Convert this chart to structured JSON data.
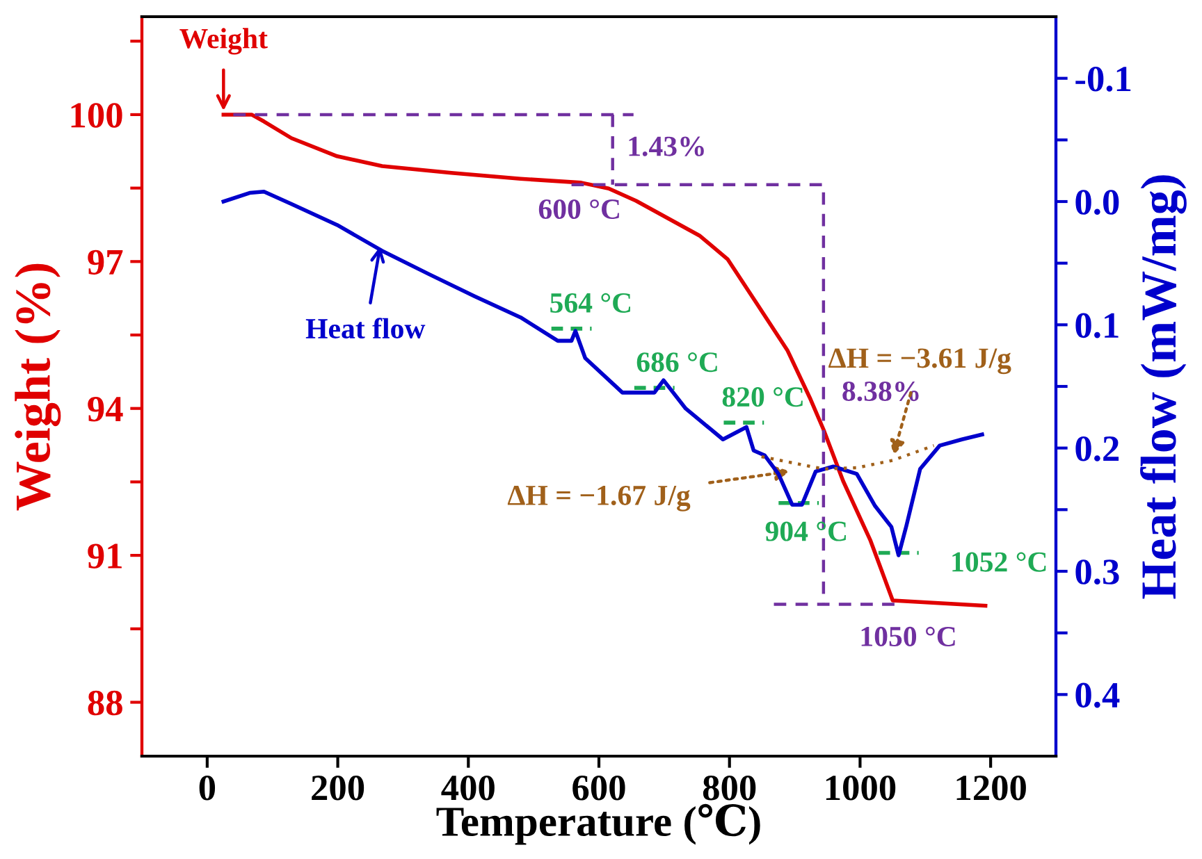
{
  "chart_data": {
    "type": "line",
    "xlabel": "Temperature (℃)",
    "ylabel": "Weight (%)",
    "y2label": "Heat flow (mW/mg)",
    "xlim": [
      -100,
      1300
    ],
    "xticks": [
      0,
      200,
      400,
      600,
      800,
      1000,
      1200
    ],
    "ylim": [
      86.9,
      102
    ],
    "yticks": [
      {
        "value": 101.5,
        "label": null
      },
      100,
      {
        "value": 98.5,
        "label": null
      },
      97,
      {
        "value": 95.5,
        "label": null
      },
      94,
      {
        "value": 92.5,
        "label": null
      },
      91,
      {
        "value": 89.5,
        "label": null
      },
      88
    ],
    "y2lim": [
      0.45,
      -0.15
    ],
    "y2ticks": [
      {
        "value": -0.1,
        "label": "-0.1"
      },
      {
        "value": -0.05,
        "label": null
      },
      {
        "value": 0.0,
        "label": "0.0"
      },
      {
        "value": 0.05,
        "label": null
      },
      0.1,
      {
        "value": 0.15,
        "label": null
      },
      0.2,
      {
        "value": 0.25,
        "label": null
      },
      0.3,
      {
        "value": 0.35,
        "label": null
      },
      0.4
    ],
    "grid": false,
    "legend": false,
    "marker": "none",
    "series": [
      {
        "color": "#e00000",
        "line_style": "solid",
        "x": [
          25,
          68,
          87,
          129,
          199,
          268,
          374,
          480,
          573,
          615,
          657,
          754,
          797,
          839,
          889,
          923,
          944,
          974,
          1016,
          1050,
          1192
        ],
        "values": [
          100.0,
          100.0,
          99.86,
          99.52,
          99.15,
          98.95,
          98.81,
          98.69,
          98.61,
          98.49,
          98.24,
          97.53,
          97.05,
          96.2,
          95.18,
          94.22,
          93.57,
          92.52,
          91.3,
          90.08,
          89.97
        ]
      },
      {
        "color": "#0000cc",
        "line_style": "solid",
        "axis": "y2",
        "x": [
          25,
          65,
          87,
          129,
          199,
          268,
          340,
          410,
          480,
          537,
          558,
          564,
          579,
          636,
          685,
          699,
          733,
          790,
          826,
          837,
          854,
          875,
          896,
          911,
          932,
          959,
          995,
          1023,
          1048,
          1059,
          1071,
          1092,
          1122,
          1156,
          1187
        ],
        "values": [
          0.0,
          -0.007,
          -0.008,
          0.002,
          0.019,
          0.04,
          0.059,
          0.077,
          0.094,
          0.113,
          0.113,
          0.105,
          0.127,
          0.155,
          0.155,
          0.145,
          0.168,
          0.193,
          0.183,
          0.202,
          0.206,
          0.221,
          0.246,
          0.246,
          0.219,
          0.215,
          0.221,
          0.247,
          0.264,
          0.287,
          0.263,
          0.217,
          0.198,
          0.193,
          0.189
        ]
      },
      {
        "color": "#a0601a",
        "line_style": "dotted",
        "axis": "y2",
        "x": [
          849,
          944,
          995,
          1050,
          1113
        ],
        "values": [
          0.207,
          0.217,
          0.216,
          0.21,
          0.198
        ]
      },
      {
        "color": "#7030a0",
        "line_style": "dashed",
        "x": [
          40,
          653
        ],
        "values": [
          100.0,
          100.0
        ]
      },
      {
        "color": "#7030a0",
        "line_style": "dashed",
        "x": [
          621,
          621
        ],
        "values": [
          100.0,
          98.57
        ]
      },
      {
        "color": "#7030a0",
        "line_style": "dashed",
        "x": [
          558,
          944,
          944
        ],
        "values": [
          98.57,
          98.57,
          90.0
        ]
      },
      {
        "color": "#7030a0",
        "line_style": "dashed",
        "x": [
          868,
          1054
        ],
        "values": [
          90.0,
          90.0
        ]
      }
    ],
    "annotations": [
      {
        "text": "Weight",
        "x": 25,
        "y": 100.0
      },
      {
        "text": "Heat flow",
        "x": 266,
        "y": 97.39
      },
      {
        "text": "1.43%",
        "x": 621,
        "y": 99.3
      },
      {
        "text": "600 °C",
        "x": 600,
        "y": 98.57
      },
      {
        "text": "8.38%",
        "x": 944,
        "y": 94.3
      },
      {
        "text": "1050 °C",
        "x": 1050,
        "y": 90.0
      },
      {
        "text": "564 °C",
        "x": 558,
        "y": 95.63
      },
      {
        "text": "686 °C",
        "x": 685,
        "y": 94.42
      },
      {
        "text": "820 °C",
        "x": 822,
        "y": 93.71
      },
      {
        "text": "904 °C",
        "x": 906,
        "y": 92.07
      },
      {
        "text": "1052 °C",
        "x": 1059,
        "y": 91.05
      },
      {
        "text": "ΔH = −1.67 J/g",
        "x": 896,
        "y": 92.72
      },
      {
        "text": "ΔH = −3.61 J/g",
        "x": 1050,
        "y": 93.0
      }
    ]
  }
}
